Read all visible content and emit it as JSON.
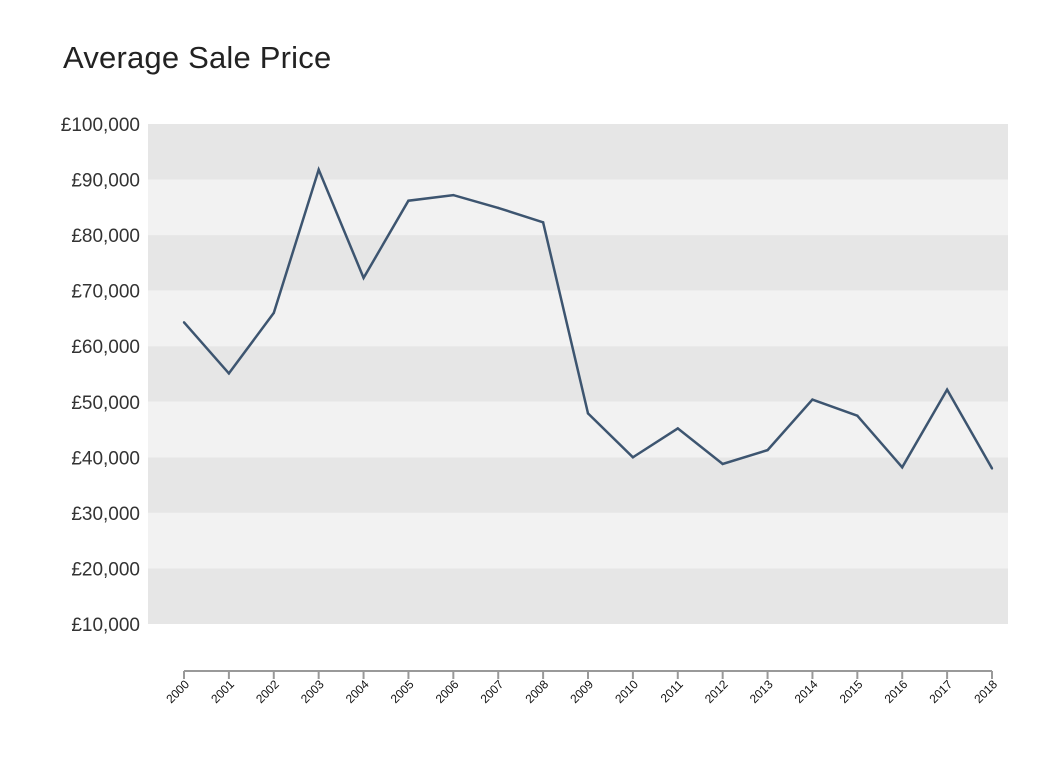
{
  "chart_data": {
    "type": "line",
    "title": "Average Sale Price",
    "xlabel": "",
    "ylabel": "",
    "ylim": [
      10000,
      100000
    ],
    "y_ticks": [
      "£100,000",
      "£90,000",
      "£80,000",
      "£70,000",
      "£60,000",
      "£50,000",
      "£40,000",
      "£30,000",
      "£20,000",
      "£10,000"
    ],
    "y_tick_values": [
      100000,
      90000,
      80000,
      70000,
      60000,
      50000,
      40000,
      30000,
      20000,
      10000
    ],
    "categories": [
      "2000",
      "2001",
      "2002",
      "2003",
      "2004",
      "2005",
      "2006",
      "2007",
      "2008",
      "2009",
      "2010",
      "2011",
      "2012",
      "2013",
      "2014",
      "2015",
      "2016",
      "2017",
      "2018"
    ],
    "series": [
      {
        "values": [
          64300,
          55100,
          66000,
          91800,
          72300,
          86200,
          87200,
          84900,
          82300,
          47900,
          40000,
          45200,
          38800,
          41300,
          50400,
          47500,
          38200,
          52200,
          38000
        ]
      }
    ],
    "grid": true,
    "legend": "none",
    "colors": {
      "line": "#3d5570",
      "band_dark": "#e6e6e6",
      "band_light": "#f2f2f2",
      "axis": "#999999"
    }
  }
}
